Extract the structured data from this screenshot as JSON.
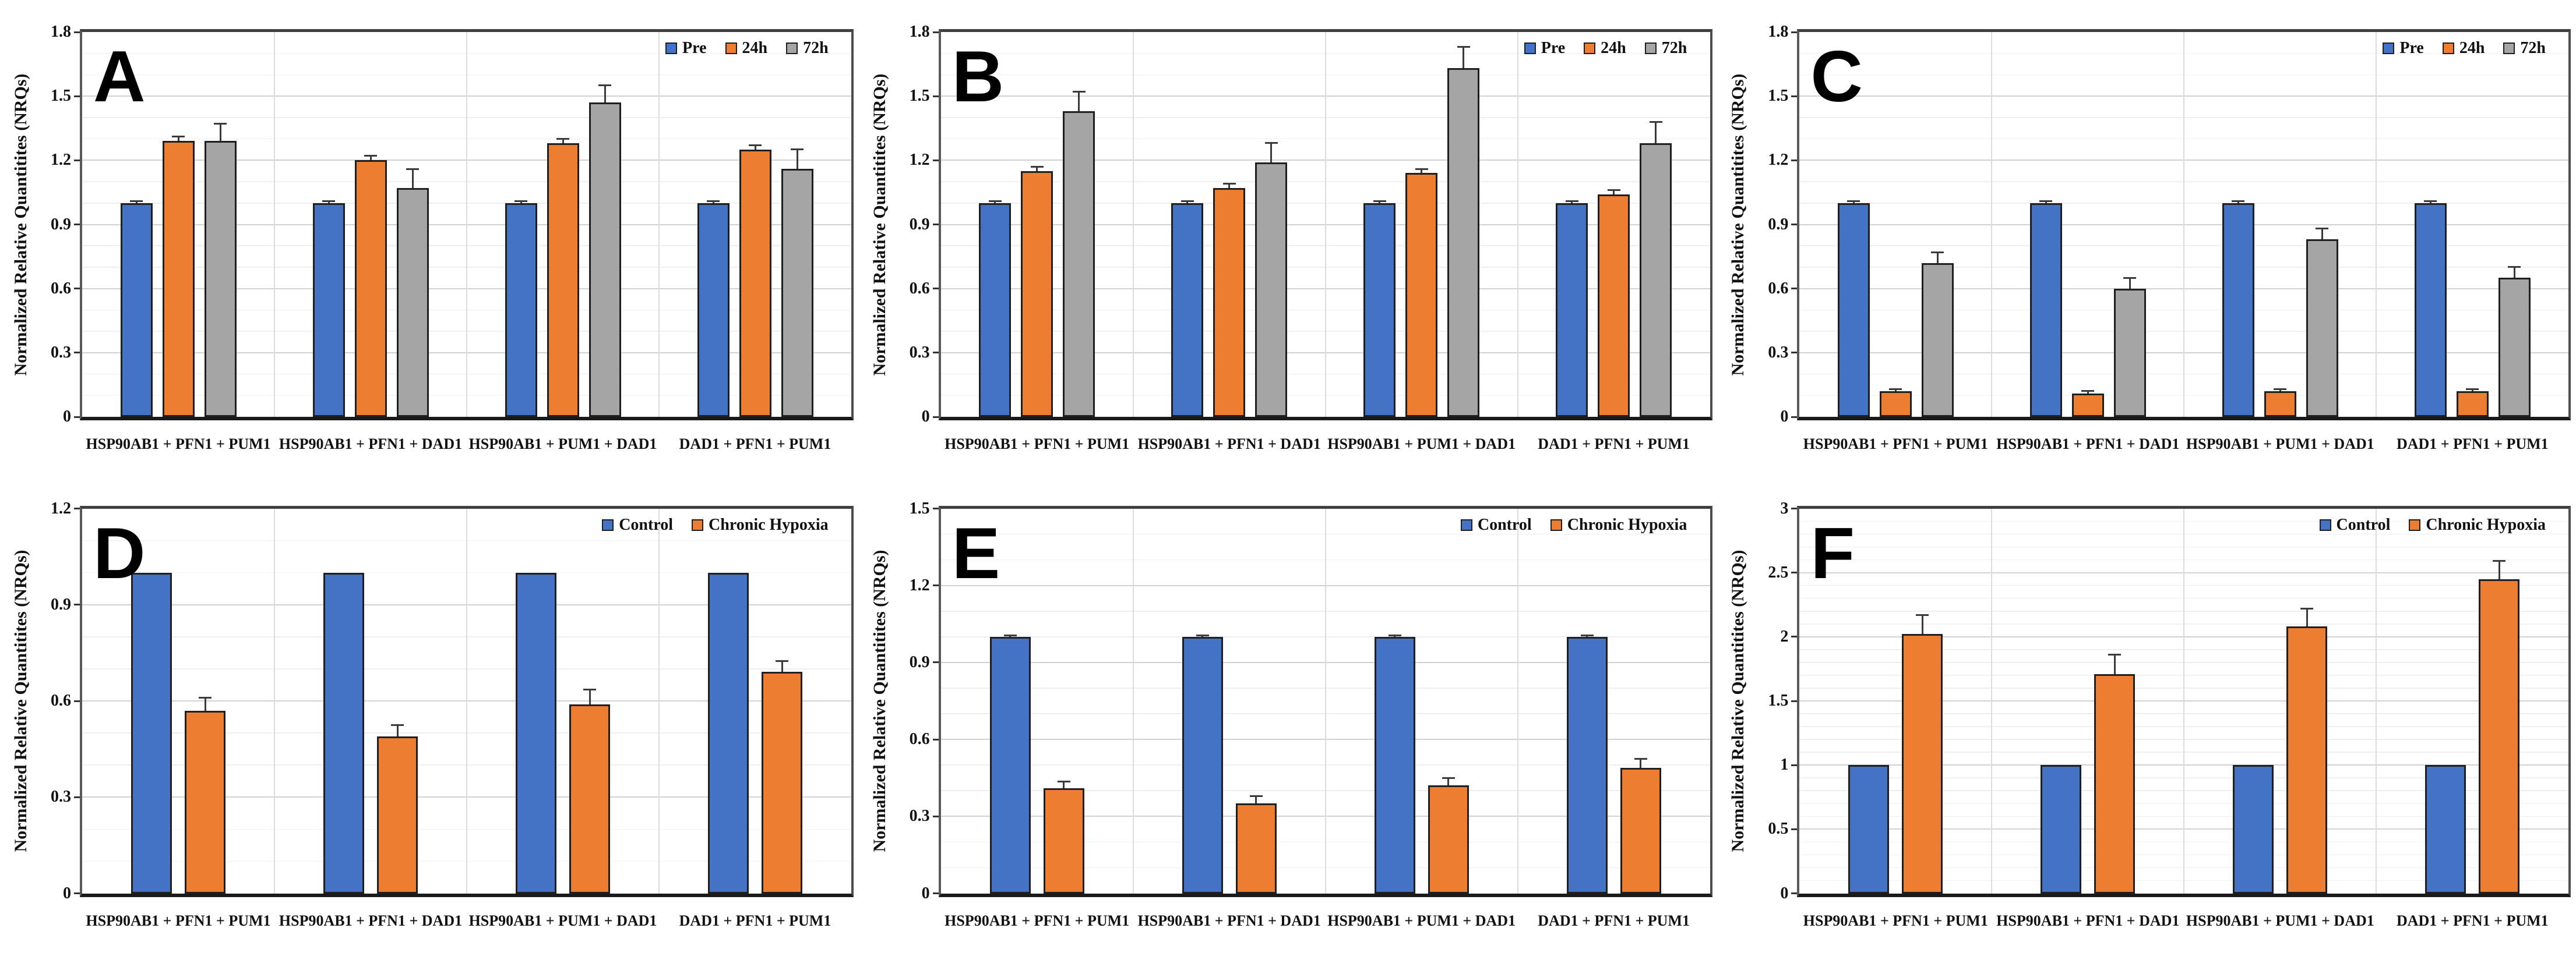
{
  "styles": {
    "blue": "#4472C4",
    "orange": "#ED7D31",
    "gray": "#A5A5A5",
    "bar_border": "#1f1f1f",
    "error_color": "#3a3a3a"
  },
  "chart_data": [
    {
      "type": "bar",
      "panel_label": "A",
      "ylabel": "Normalized Relative Quantitites (NRQs)",
      "ylim": [
        0,
        1.8
      ],
      "ytick_step": 0.3,
      "minor_step": 0.1,
      "grid": true,
      "legend_position": "top-right",
      "ytick_labels": [
        "0",
        "0.3",
        "0.6",
        "0.9",
        "1.2",
        "1.5",
        "1.8"
      ],
      "categories": [
        "HSP90AB1 + PFN1 + PUM1",
        "HSP90AB1 + PFN1 + DAD1",
        "HSP90AB1 + PUM1 + DAD1",
        "DAD1 + PFN1 + PUM1"
      ],
      "series": [
        {
          "name": "Pre",
          "color": "#4472C4",
          "values": [
            1.0,
            1.0,
            1.0,
            1.0
          ],
          "errors": [
            0.01,
            0.01,
            0.01,
            0.01
          ]
        },
        {
          "name": "24h",
          "color": "#ED7D31",
          "values": [
            1.29,
            1.2,
            1.28,
            1.25
          ],
          "errors": [
            0.02,
            0.02,
            0.02,
            0.02
          ]
        },
        {
          "name": "72h",
          "color": "#A5A5A5",
          "values": [
            1.29,
            1.07,
            1.47,
            1.16
          ],
          "errors": [
            0.08,
            0.09,
            0.08,
            0.09
          ]
        }
      ]
    },
    {
      "type": "bar",
      "panel_label": "B",
      "ylabel": "Normalized Relative Quantitites (NRQs)",
      "ylim": [
        0,
        1.8
      ],
      "ytick_step": 0.3,
      "minor_step": 0.1,
      "grid": true,
      "legend_position": "top-right",
      "ytick_labels": [
        "0",
        "0.3",
        "0.6",
        "0.9",
        "1.2",
        "1.5",
        "1.8"
      ],
      "categories": [
        "HSP90AB1 + PFN1 + PUM1",
        "HSP90AB1 + PFN1 + DAD1",
        "HSP90AB1 + PUM1 + DAD1",
        "DAD1 + PFN1 + PUM1"
      ],
      "series": [
        {
          "name": "Pre",
          "color": "#4472C4",
          "values": [
            1.0,
            1.0,
            1.0,
            1.0
          ],
          "errors": [
            0.01,
            0.01,
            0.01,
            0.01
          ]
        },
        {
          "name": "24h",
          "color": "#ED7D31",
          "values": [
            1.15,
            1.07,
            1.14,
            1.04
          ],
          "errors": [
            0.02,
            0.02,
            0.02,
            0.02
          ]
        },
        {
          "name": "72h",
          "color": "#A5A5A5",
          "values": [
            1.43,
            1.19,
            1.63,
            1.28
          ],
          "errors": [
            0.09,
            0.09,
            0.1,
            0.1
          ]
        }
      ]
    },
    {
      "type": "bar",
      "panel_label": "C",
      "ylabel": "Normalized Relative Quantitites (NRQs)",
      "ylim": [
        0,
        1.8
      ],
      "ytick_step": 0.3,
      "minor_step": 0.1,
      "grid": true,
      "legend_position": "top-right",
      "ytick_labels": [
        "0",
        "0.3",
        "0.6",
        "0.9",
        "1.2",
        "1.5",
        "1.8"
      ],
      "categories": [
        "HSP90AB1 + PFN1 + PUM1",
        "HSP90AB1 + PFN1 + DAD1",
        "HSP90AB1 + PUM1 + DAD1",
        "DAD1 + PFN1 + PUM1"
      ],
      "series": [
        {
          "name": "Pre",
          "color": "#4472C4",
          "values": [
            1.0,
            1.0,
            1.0,
            1.0
          ],
          "errors": [
            0.01,
            0.01,
            0.01,
            0.01
          ]
        },
        {
          "name": "24h",
          "color": "#ED7D31",
          "values": [
            0.12,
            0.11,
            0.12,
            0.12
          ],
          "errors": [
            0.01,
            0.01,
            0.01,
            0.01
          ]
        },
        {
          "name": "72h",
          "color": "#A5A5A5",
          "values": [
            0.72,
            0.6,
            0.83,
            0.65
          ],
          "errors": [
            0.05,
            0.05,
            0.05,
            0.05
          ]
        }
      ]
    },
    {
      "type": "bar",
      "panel_label": "D",
      "ylabel": "Normalized Relative Quantitites (NRQs)",
      "ylim": [
        0,
        1.2
      ],
      "ytick_step": 0.3,
      "minor_step": 0.1,
      "grid": true,
      "legend_position": "top-right",
      "ytick_labels": [
        "0",
        "0.3",
        "0.6",
        "0.9",
        "1.2"
      ],
      "categories": [
        "HSP90AB1 + PFN1 + PUM1",
        "HSP90AB1 + PFN1 + DAD1",
        "HSP90AB1 + PUM1 + DAD1",
        "DAD1 + PFN1 + PUM1"
      ],
      "series": [
        {
          "name": "Control",
          "color": "#4472C4",
          "values": [
            1.0,
            1.0,
            1.0,
            1.0
          ],
          "errors": [
            0,
            0,
            0,
            0
          ]
        },
        {
          "name": "Chronic Hypoxia",
          "color": "#ED7D31",
          "values": [
            0.57,
            0.49,
            0.59,
            0.69
          ],
          "errors": [
            0.04,
            0.035,
            0.045,
            0.035
          ]
        }
      ]
    },
    {
      "type": "bar",
      "panel_label": "E",
      "ylabel": "Normalized Relative Quantitites (NRQs)",
      "ylim": [
        0,
        1.5
      ],
      "ytick_step": 0.3,
      "minor_step": 0.1,
      "grid": true,
      "legend_position": "top-right",
      "ytick_labels": [
        "0",
        "0.3",
        "0.6",
        "0.9",
        "1.2",
        "1.5"
      ],
      "categories": [
        "HSP90AB1 + PFN1 + PUM1",
        "HSP90AB1 + PFN1 + DAD1",
        "HSP90AB1 + PUM1 + DAD1",
        "DAD1 + PFN1 + PUM1"
      ],
      "series": [
        {
          "name": "Control",
          "color": "#4472C4",
          "values": [
            1.0,
            1.0,
            1.0,
            1.0
          ],
          "errors": [
            0.005,
            0.005,
            0.005,
            0.005
          ]
        },
        {
          "name": "Chronic Hypoxia",
          "color": "#ED7D31",
          "values": [
            0.41,
            0.35,
            0.42,
            0.49
          ],
          "errors": [
            0.025,
            0.03,
            0.03,
            0.035
          ]
        }
      ]
    },
    {
      "type": "bar",
      "panel_label": "F",
      "ylabel": "Normalized Relative Quantitites (NRQs)",
      "ylim": [
        0,
        3
      ],
      "ytick_step": 0.5,
      "minor_step": 0.1,
      "grid": true,
      "legend_position": "top-right",
      "ytick_labels": [
        "0",
        "0.5",
        "1",
        "1.5",
        "2",
        "2.5",
        "3"
      ],
      "categories": [
        "HSP90AB1 + PFN1 + PUM1",
        "HSP90AB1 + PFN1 + DAD1",
        "HSP90AB1 + PUM1 + DAD1",
        "DAD1 + PFN1 + PUM1"
      ],
      "series": [
        {
          "name": "Control",
          "color": "#4472C4",
          "values": [
            1.0,
            1.0,
            1.0,
            1.0
          ],
          "errors": [
            0,
            0,
            0,
            0
          ]
        },
        {
          "name": "Chronic Hypoxia",
          "color": "#ED7D31",
          "values": [
            2.02,
            1.71,
            2.08,
            2.45
          ],
          "errors": [
            0.15,
            0.15,
            0.14,
            0.14
          ]
        }
      ]
    }
  ]
}
